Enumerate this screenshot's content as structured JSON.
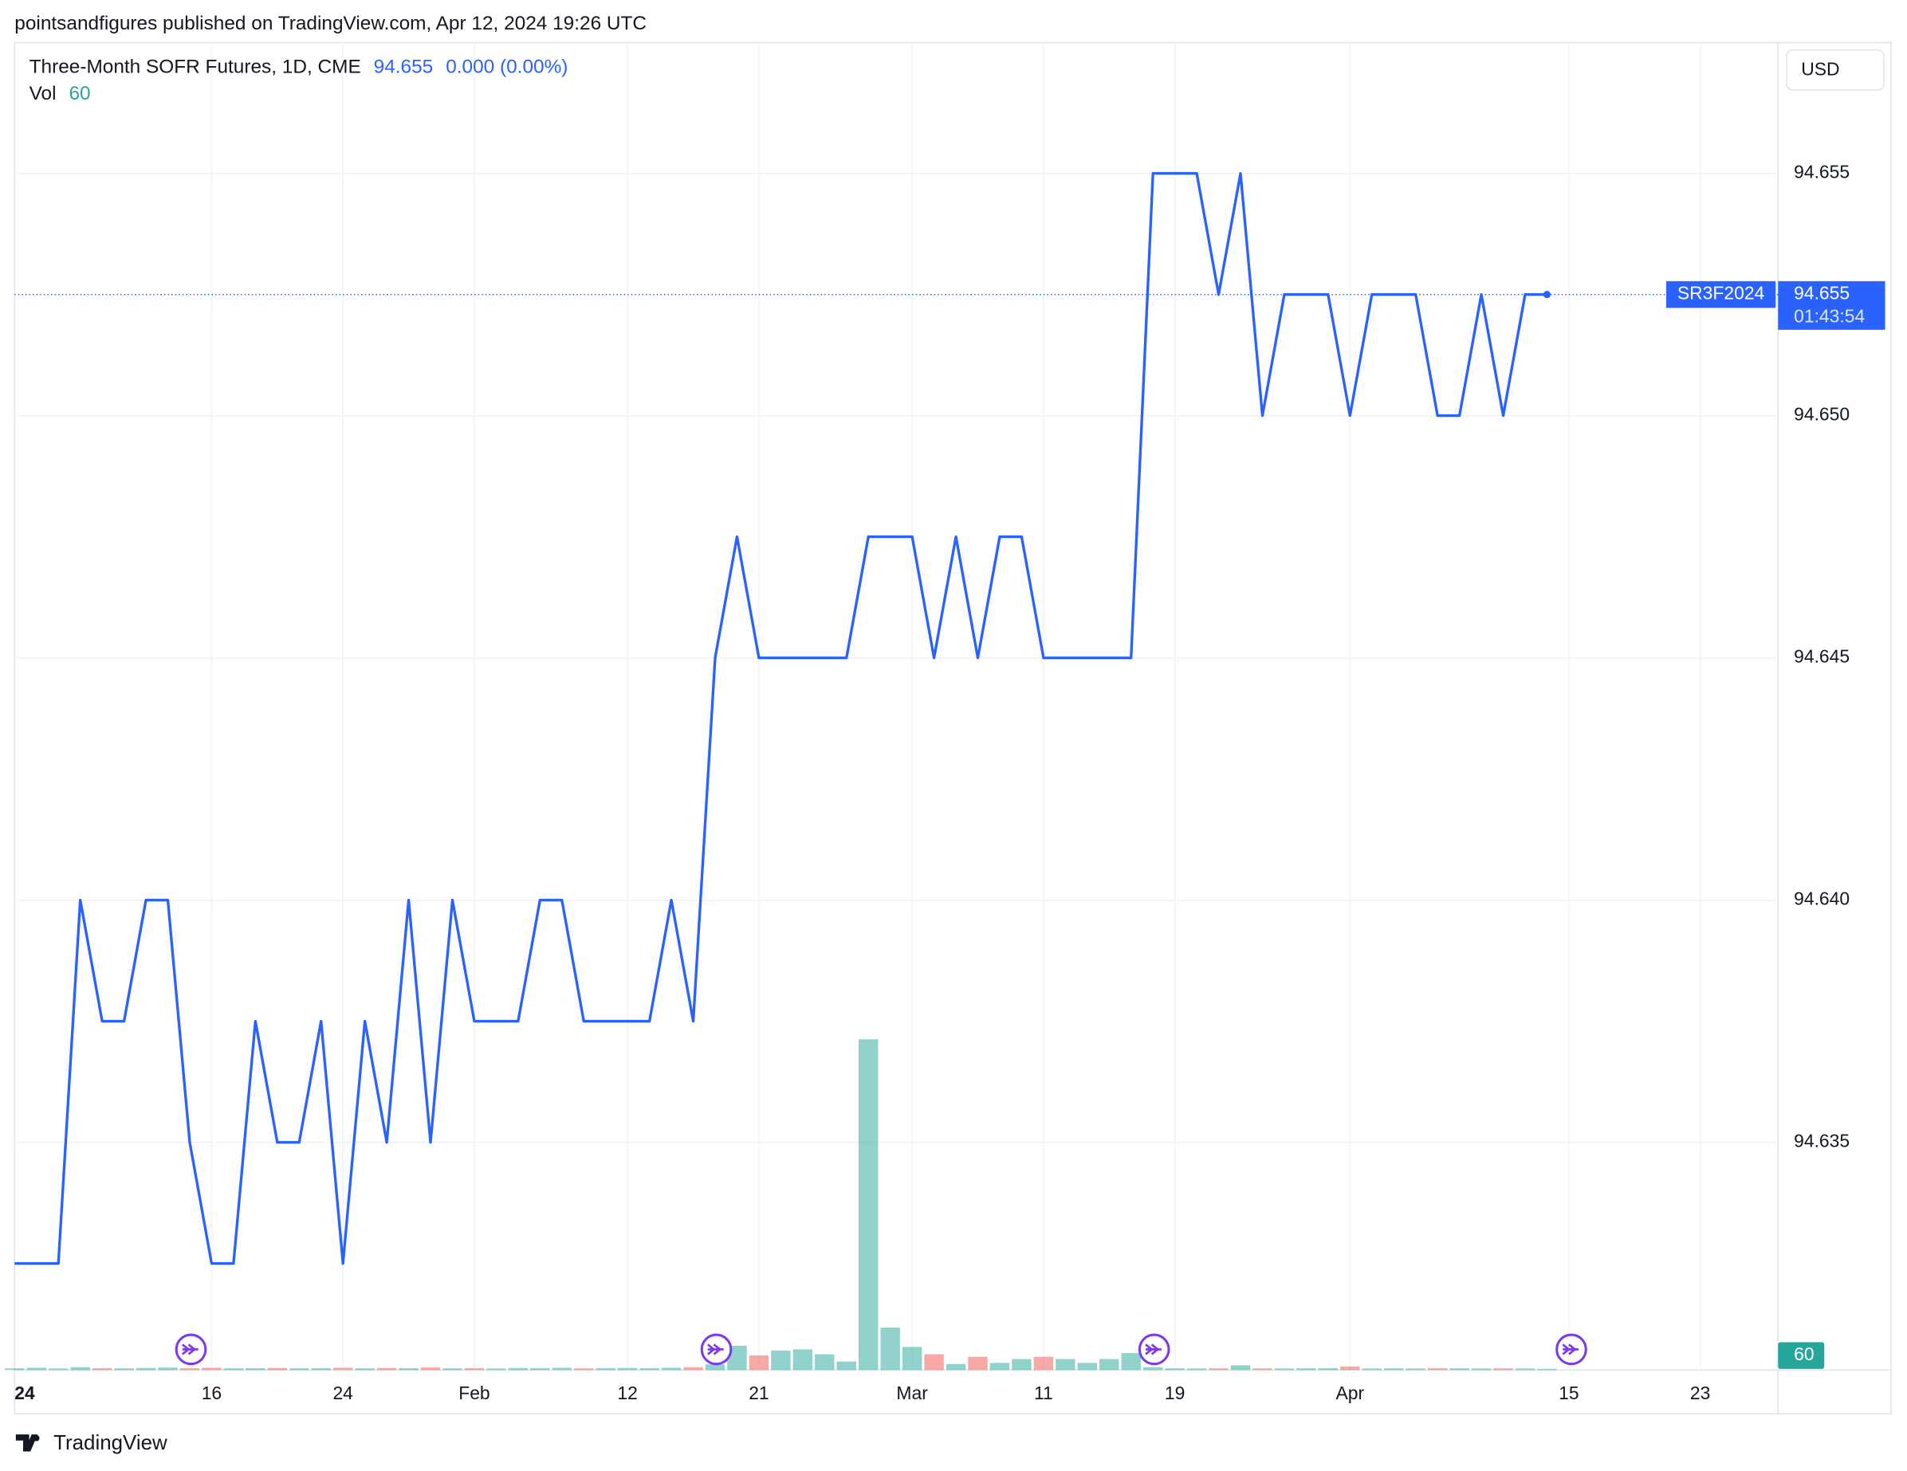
{
  "header": "pointsandfigures published on TradingView.com, Apr 12, 2024 19:26 UTC",
  "brand": "TradingView",
  "chart_data": {
    "type": "line",
    "currency": "USD",
    "last_price": "94.655",
    "change": "0.000 (0.00%)",
    "price_tag": {
      "symbol": "SR3F2024",
      "price": "94.655",
      "countdown": "01:43:54"
    },
    "categories": [
      "24",
      null,
      null,
      null,
      null,
      null,
      null,
      null,
      null,
      "16",
      null,
      null,
      null,
      null,
      null,
      "24",
      null,
      null,
      null,
      null,
      null,
      "Feb",
      null,
      null,
      null,
      null,
      null,
      null,
      "12",
      null,
      null,
      null,
      null,
      null,
      "21",
      null,
      null,
      null,
      null,
      null,
      null,
      "Mar",
      null,
      null,
      null,
      null,
      null,
      "11",
      null,
      null,
      null,
      null,
      null,
      "19",
      null,
      null,
      null,
      null,
      null,
      null,
      null,
      "Apr",
      null,
      null,
      null,
      null,
      null,
      null,
      null,
      null,
      null,
      "15",
      null,
      null,
      null,
      null,
      null,
      "23",
      null,
      null,
      null
    ],
    "series": [
      {
        "name": "Three-Month SOFR Futures, 1D, CME",
        "color": "#2962ff",
        "values": [
          94.6325,
          94.6325,
          94.6325,
          94.64,
          94.6375,
          94.6375,
          94.64,
          94.64,
          94.635,
          94.6325,
          94.6325,
          94.6375,
          94.635,
          94.635,
          94.6375,
          94.6325,
          94.6375,
          94.635,
          94.64,
          94.635,
          94.64,
          94.6375,
          94.6375,
          94.6375,
          94.64,
          94.64,
          94.6375,
          94.6375,
          94.6375,
          94.6375,
          94.64,
          94.6375,
          94.645,
          94.6475,
          94.645,
          94.645,
          94.645,
          94.645,
          94.645,
          94.6475,
          94.6475,
          94.6475,
          94.645,
          94.6475,
          94.645,
          94.6475,
          94.6475,
          94.645,
          94.645,
          94.645,
          94.645,
          94.645,
          94.655,
          94.655,
          94.655,
          94.6525,
          94.655,
          94.65,
          94.6525,
          94.6525,
          94.6525,
          94.65,
          94.6525,
          94.6525,
          94.6525,
          94.65,
          94.65,
          94.6525,
          94.65,
          94.6525,
          94.6525,
          null,
          null,
          null,
          null,
          null,
          null,
          null,
          null,
          null,
          null
        ]
      },
      {
        "name": "Vol",
        "type": "bar",
        "axis": "y2",
        "color": "#26a69a",
        "down_color": "#ef5350",
        "values": [
          90,
          120,
          80,
          150,
          100,
          90,
          110,
          130,
          100,
          120,
          90,
          100,
          110,
          90,
          100,
          120,
          90,
          110,
          100,
          130,
          90,
          100,
          80,
          110,
          100,
          120,
          90,
          100,
          110,
          100,
          120,
          150,
          300,
          1280,
          770,
          1030,
          1090,
          830,
          450,
          17440,
          2240,
          1220,
          830,
          320,
          700,
          380,
          580,
          700,
          580,
          380,
          580,
          900,
          150,
          90,
          80,
          90,
          250,
          90,
          80,
          90,
          100,
          190,
          80,
          90,
          80,
          100,
          90,
          80,
          90,
          80,
          60,
          null,
          null,
          null,
          null,
          null,
          null,
          null,
          null,
          null,
          null
        ]
      }
    ],
    "ylim": [
      94.6303,
      94.6577
    ],
    "yticks": [
      94.635,
      {
        "value": 94.64,
        "label": "94.640"
      },
      94.645,
      {
        "value": 94.65,
        "label": "94.650"
      },
      94.655
    ],
    "y2lim": [
      0,
      70000
    ],
    "grid": true
  }
}
